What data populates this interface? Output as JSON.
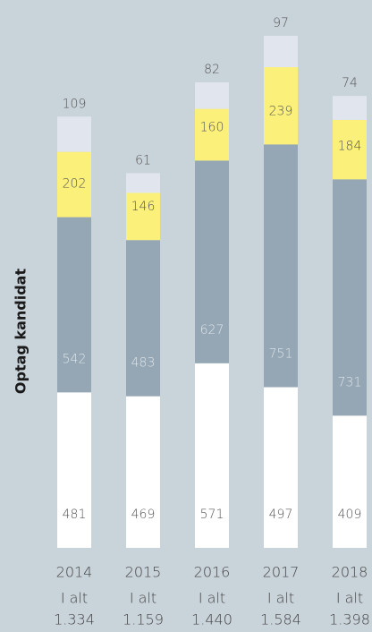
{
  "chart_data": {
    "type": "stacked-bar",
    "y_label": "Optag kandidat",
    "categories": [
      "2014",
      "2015",
      "2016",
      "2017",
      "2018"
    ],
    "series": [
      {
        "color": "#ffffff",
        "label_color": "#555555",
        "values": [
          481,
          469,
          571,
          497,
          409
        ]
      },
      {
        "color": "#95a7b4",
        "label_color": "#dfe5ea",
        "values": [
          542,
          483,
          627,
          751,
          731
        ]
      },
      {
        "color": "#fbf07a",
        "label_color": "#555555",
        "values": [
          202,
          146,
          160,
          239,
          184
        ]
      },
      {
        "color": "#e1e6ee",
        "label_color": "#555555",
        "values": [
          109,
          61,
          82,
          97,
          74
        ]
      }
    ],
    "total_label": "I alt",
    "totals": [
      {
        "value": 1334,
        "label": "1.334"
      },
      {
        "value": 1159,
        "label": "1.159"
      },
      {
        "value": 1440,
        "label": "1.440"
      },
      {
        "value": 1584,
        "label": "1.584"
      },
      {
        "value": 1398,
        "label": "1.398"
      }
    ]
  }
}
